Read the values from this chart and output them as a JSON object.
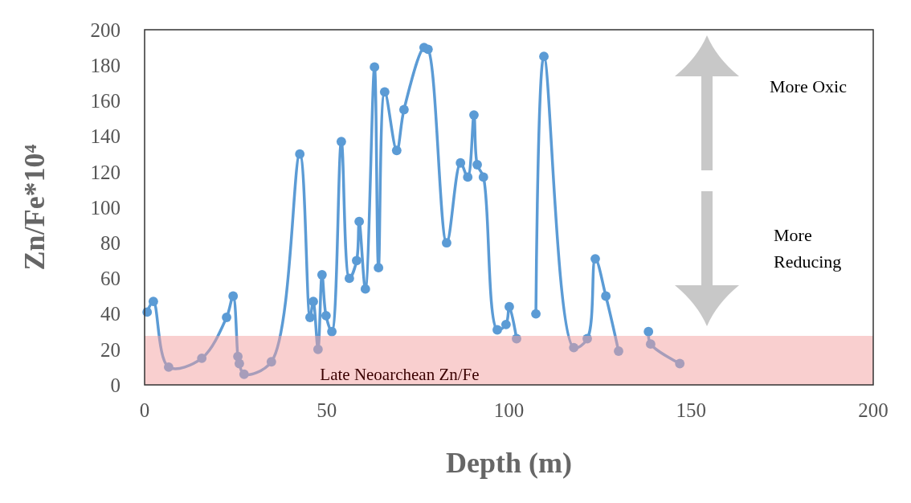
{
  "chart_data": {
    "type": "line",
    "xlabel": "Depth (m)",
    "ylabel": "Zn/Fe*10⁴",
    "xlim": [
      0,
      200
    ],
    "xticks": [
      0,
      50,
      100,
      150,
      200
    ],
    "ylim": [
      0,
      200
    ],
    "yticks": [
      0,
      20,
      40,
      60,
      80,
      100,
      120,
      140,
      160,
      180,
      200
    ],
    "grid": false,
    "marker": "circle",
    "line_style": "solid",
    "series": [
      {
        "color": "#5b9bd5",
        "x": [
          0.7,
          2.4,
          6.6,
          15.7,
          22.5,
          24.3,
          25.6,
          26,
          27.3,
          34.8,
          42.6,
          45.4,
          46.3,
          47.6,
          48.7,
          49.8,
          51.4,
          54,
          56.2,
          58.2,
          58.9,
          60.6,
          63.1,
          64.2,
          65.9,
          69.2,
          71.2,
          76.7,
          77.8,
          82.9,
          86.7,
          88.7,
          90.4,
          91.3,
          93,
          96.8,
          99.2,
          100.1,
          102.1
        ],
        "values": [
          41,
          47,
          10,
          15,
          38,
          50,
          16,
          12,
          6,
          13,
          130,
          38,
          47,
          20,
          62,
          39,
          30,
          137,
          60,
          70,
          92,
          54,
          179,
          66,
          165,
          132,
          155,
          190,
          189,
          80,
          125,
          117,
          152,
          124,
          117,
          31,
          34,
          44,
          26
        ]
      },
      {
        "color": "#5b9bd5",
        "x": [
          107.4,
          109.6,
          117.8,
          121.5,
          123.7,
          126.6,
          130.1
        ],
        "values": [
          40,
          185,
          21,
          26,
          71,
          50,
          19
        ]
      },
      {
        "color": "#5b9bd5",
        "x": [
          138.3,
          138.9,
          146.9
        ],
        "values": [
          30,
          23,
          12
        ]
      }
    ],
    "bands": [
      {
        "axis": "y",
        "from": 0,
        "to": 27.6,
        "label": "Late Neoarchean Zn/Fe",
        "color": "#f4a0a0"
      }
    ],
    "annotations": [
      "More Oxic",
      "More\nReducing"
    ]
  }
}
